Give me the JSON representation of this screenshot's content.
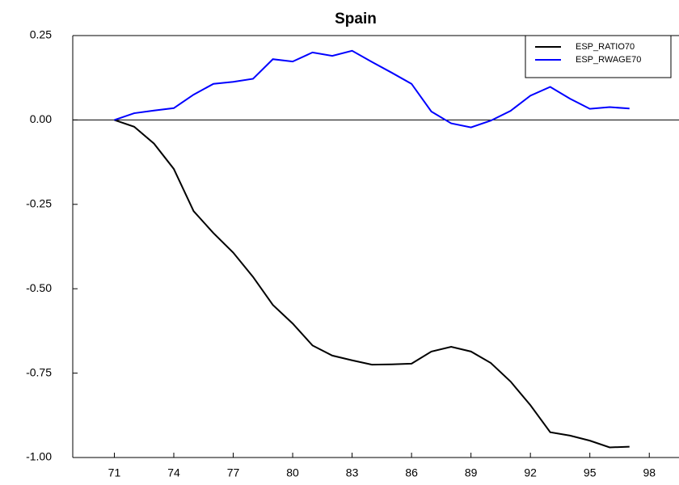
{
  "chart_data": {
    "type": "line",
    "title": "Spain",
    "x": [
      71,
      72,
      73,
      74,
      75,
      76,
      77,
      78,
      79,
      80,
      81,
      82,
      83,
      84,
      85,
      86,
      87,
      88,
      89,
      90,
      91,
      92,
      93,
      94,
      95,
      96,
      97
    ],
    "series": [
      {
        "name": "ESP_RATIO70",
        "color": "#000000",
        "values": [
          0,
          -0.02,
          -0.07,
          -0.145,
          -0.27,
          -0.335,
          -0.393,
          -0.465,
          -0.548,
          -0.603,
          -0.668,
          -0.698,
          -0.712,
          -0.725,
          -0.724,
          -0.722,
          -0.686,
          -0.672,
          -0.686,
          -0.72,
          -0.775,
          -0.845,
          -0.925,
          -0.935,
          -0.95,
          -0.97,
          -0.968
        ]
      },
      {
        "name": "ESP_RWAGE70",
        "color": "#0000ff",
        "values": [
          0,
          0.02,
          0.028,
          0.035,
          0.075,
          0.107,
          0.113,
          0.122,
          0.18,
          0.173,
          0.2,
          0.19,
          0.205,
          0.172,
          0.14,
          0.107,
          0.025,
          -0.01,
          -0.022,
          -0.002,
          0.027,
          0.072,
          0.098,
          0.063,
          0.033,
          0.038,
          0.034
        ]
      }
    ],
    "xlim": [
      68.9,
      99.5
    ],
    "xticks": [
      71,
      74,
      77,
      80,
      83,
      86,
      89,
      92,
      95,
      98
    ],
    "ylim": [
      -1,
      0.25
    ],
    "yticks": [
      {
        "value": 0.25,
        "label": "0.25"
      },
      {
        "value": 0,
        "label": "0.00"
      },
      {
        "value": -0.25,
        "label": "-0.25"
      },
      {
        "value": -0.5,
        "label": "-0.50"
      },
      {
        "value": -0.75,
        "label": "-0.75"
      },
      {
        "value": -1,
        "label": "-1.00"
      }
    ],
    "zero_line": true,
    "legend": "top-right"
  }
}
